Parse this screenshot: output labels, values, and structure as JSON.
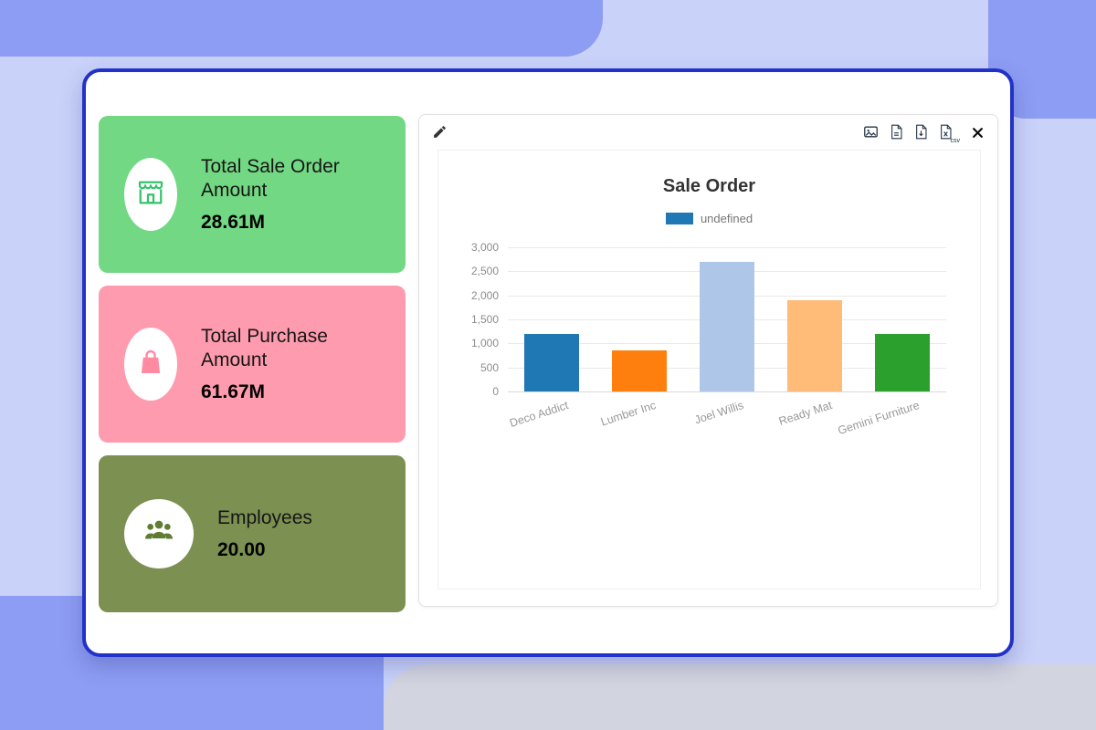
{
  "kpi": {
    "cards": [
      {
        "title": "Total Sale Order Amount",
        "value": "28.61M",
        "icon": "store-icon"
      },
      {
        "title": "Total Purchase Amount",
        "value": "61.67M",
        "icon": "shopping-bag-icon"
      },
      {
        "title": "Employees",
        "value": "20.00",
        "icon": "users-icon"
      }
    ]
  },
  "widget": {
    "toolbar": {
      "edit_icon": "pencil-icon",
      "export_icons": [
        "image-export-icon",
        "pdf-export-icon",
        "doc-export-icon",
        "xls-export-icon"
      ],
      "csv_label": "csv",
      "close_icon": "close-icon"
    }
  },
  "chart_data": {
    "type": "bar",
    "title": "Sale Order",
    "legend": [
      {
        "label": "undefined",
        "color": "#1f77b4"
      }
    ],
    "legend_position": "top",
    "categories": [
      "Deco Addict",
      "Lumber Inc",
      "Joel Willis",
      "Ready Mat",
      "Gemini Furniture"
    ],
    "values": [
      1200,
      850,
      2700,
      1900,
      1200
    ],
    "bar_colors": [
      "#1f77b4",
      "#ff7f0e",
      "#aec7e8",
      "#ffbb78",
      "#2ca02c"
    ],
    "xlabel": "",
    "ylabel": "",
    "ylim": [
      0,
      3000
    ],
    "ytick_step": 500,
    "grid": true
  },
  "colors": {
    "card_green": "#72d883",
    "card_pink": "#ff9bae",
    "card_olive": "#7c9052",
    "window_border": "#2232c8",
    "icon_green": "#35c36a",
    "icon_pink": "#ff8aa1",
    "icon_olive": "#5f7c33"
  }
}
